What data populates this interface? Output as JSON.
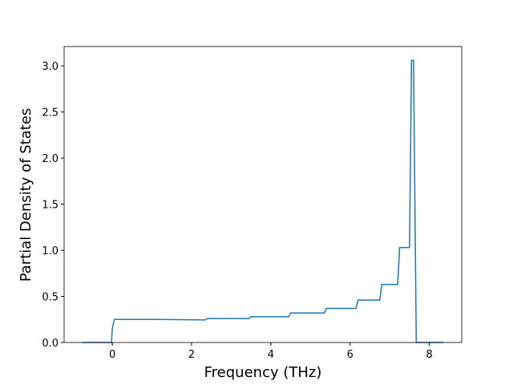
{
  "chart_data": {
    "type": "line",
    "x_label": "Frequency (THz)",
    "y_label": "Partial Density of States",
    "x": [
      -0.76,
      -0.02,
      0.0,
      0.05,
      1.15,
      2.35,
      2.4,
      3.45,
      3.5,
      4.45,
      4.5,
      5.35,
      5.4,
      6.15,
      6.2,
      6.75,
      6.8,
      7.2,
      7.25,
      7.5,
      7.55,
      7.6,
      7.67,
      8.36
    ],
    "series": [
      {
        "color": "#1f77b4",
        "values": [
          0,
          0,
          0.15,
          0.25,
          0.25,
          0.245,
          0.26,
          0.26,
          0.28,
          0.28,
          0.32,
          0.32,
          0.37,
          0.37,
          0.46,
          0.46,
          0.63,
          0.63,
          1.03,
          1.03,
          3.06,
          3.06,
          0,
          0
        ]
      }
    ],
    "xlim": [
      -1.216,
      8.816
    ],
    "ylim": [
      0,
      3.21
    ],
    "xticks": [
      0,
      2,
      4,
      6,
      8
    ],
    "yticks": [
      {
        "value": 0,
        "label": "0.0"
      },
      0.5,
      {
        "value": 1,
        "label": "1.0"
      },
      1.5,
      {
        "value": 2,
        "label": "2.0"
      },
      2.5,
      {
        "value": 3,
        "label": "3.0"
      }
    ],
    "grid": false
  }
}
